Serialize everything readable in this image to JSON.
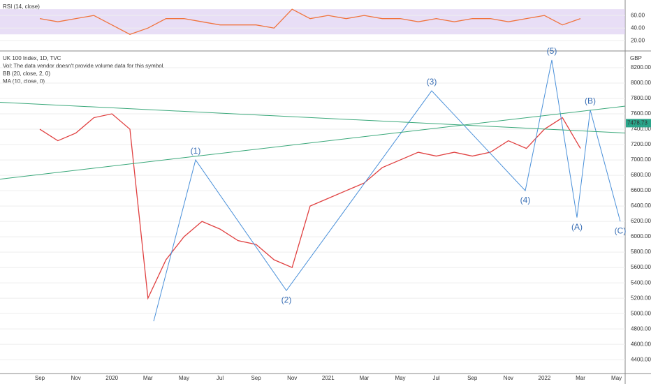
{
  "chart_data": [
    {
      "type": "line",
      "title": "RSI (14, close)",
      "color": "#f0743e",
      "band": [
        30,
        70
      ],
      "band_color": "#d8c8f0",
      "categories": [
        "Sep",
        null,
        "Nov",
        null,
        "2020",
        null,
        "Mar",
        null,
        "May",
        null,
        "Jul",
        null,
        "Sep",
        null,
        "Nov",
        null,
        "2021",
        null,
        "Mar",
        null,
        "May",
        null,
        "Jul",
        null,
        "Sep",
        null,
        "Nov",
        null,
        "2022",
        null,
        "Mar",
        null,
        "May"
      ],
      "values": [
        55,
        50,
        55,
        60,
        45,
        30,
        40,
        55,
        55,
        50,
        45,
        45,
        45,
        40,
        70,
        55,
        60,
        55,
        60,
        55,
        55,
        50,
        55,
        50,
        55,
        55,
        50,
        55,
        60,
        45,
        55,
        null,
        null
      ],
      "ylim": [
        7,
        79
      ],
      "yticks": [
        {
          "value": 20,
          "label": "20.00"
        },
        {
          "value": 40,
          "label": "40.00"
        },
        {
          "value": 60,
          "label": "60.00"
        }
      ]
    },
    {
      "type": "line",
      "title": "UK 100 Index, 1D, TVC",
      "notes": [
        "Vol: The data vendor doesn't provide volume data for this symbol.",
        "BB (20, close, 2, 0)",
        "MA (10, close, 0)"
      ],
      "currency": "GBP",
      "color": "#e04040",
      "wave_color": "#4a90d9",
      "last_price": {
        "value": 7478.73,
        "label": "7478.73"
      },
      "categories": [
        "Sep",
        null,
        "Nov",
        null,
        "2020",
        null,
        "Mar",
        null,
        "May",
        null,
        "Jul",
        null,
        "Sep",
        null,
        "Nov",
        null,
        "2021",
        null,
        "Mar",
        null,
        "May",
        null,
        "Jul",
        null,
        "Sep",
        null,
        "Nov",
        null,
        "2022",
        null,
        "Mar",
        null,
        "May"
      ],
      "values": [
        7400,
        7250,
        7350,
        7550,
        7600,
        7400,
        5200,
        5700,
        6000,
        6200,
        6100,
        5950,
        5900,
        5700,
        5600,
        6400,
        6500,
        6600,
        6700,
        6900,
        7000,
        7100,
        7050,
        7100,
        7050,
        7100,
        7250,
        7150,
        7400,
        7550,
        7150,
        null,
        null
      ],
      "waves": {
        "labels": [
          "(1)",
          "(2)",
          "(3)",
          "(4)",
          "(5)",
          "(A)",
          "(B)",
          "(C)"
        ],
        "values": [
          7000,
          5300,
          7900,
          6600,
          8300,
          6250,
          7650,
          6200
        ]
      },
      "ylim": [
        4220,
        8400
      ],
      "yticks": [
        {
          "value": 4400,
          "label": "4400.00"
        },
        {
          "value": 4600,
          "label": "4600.00"
        },
        {
          "value": 4800,
          "label": "4800.00"
        },
        {
          "value": 5000,
          "label": "5000.00"
        },
        {
          "value": 5200,
          "label": "5200.00"
        },
        {
          "value": 5400,
          "label": "5400.00"
        },
        {
          "value": 5600,
          "label": "5600.00"
        },
        {
          "value": 5800,
          "label": "5800.00"
        },
        {
          "value": 6000,
          "label": "6000.00"
        },
        {
          "value": 6200,
          "label": "6200.00"
        },
        {
          "value": 6400,
          "label": "6400.00"
        },
        {
          "value": 6600,
          "label": "6600.00"
        },
        {
          "value": 6800,
          "label": "6800.00"
        },
        {
          "value": 7000,
          "label": "7000.00"
        },
        {
          "value": 7200,
          "label": "7200.00"
        },
        {
          "value": 7400,
          "label": "7400.00"
        },
        {
          "value": 7600,
          "label": "7600.00"
        },
        {
          "value": 7800,
          "label": "7800.00"
        },
        {
          "value": 8000,
          "label": "8000.00"
        },
        {
          "value": 8200,
          "label": "8200.00"
        }
      ]
    }
  ]
}
